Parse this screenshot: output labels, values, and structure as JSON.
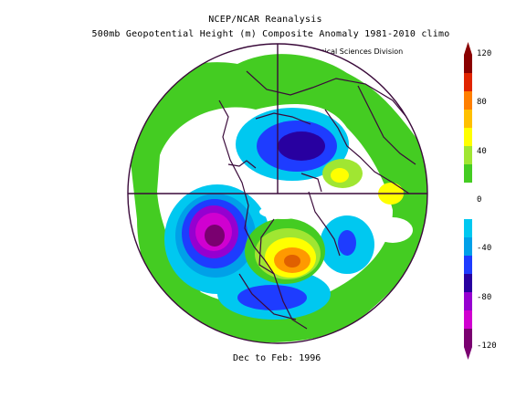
{
  "title_line1": "NCEP/NCAR Reanalysis",
  "title_line2": "500mb Geopotential Height (m) Composite Anomaly 1981-2010 climo",
  "credit": "NOAA/ESRL Physical Sciences Division",
  "footer": "Dec to Feb: 1996",
  "colorbar": {
    "labels": [
      "120",
      "80",
      "40",
      "0",
      "-40",
      "-80",
      "-120"
    ],
    "colors": [
      "#8a0000",
      "#e02400",
      "#ff7f00",
      "#ffc000",
      "#ffff00",
      "#a0e632",
      "#44cc22",
      "#ffffff",
      "#ffffff",
      "#00c8f0",
      "#00a0e8",
      "#1e3cff",
      "#2800a0",
      "#9600d0",
      "#d000d0",
      "#7a0070"
    ]
  },
  "map": {
    "projection": "north polar stereographic",
    "colors": {
      "ocean_white": "#ffffff",
      "green": "#44cc22",
      "lightgreen": "#a0e632",
      "yellow": "#ffff00",
      "orange": "#ff9900",
      "darkorange": "#e06000",
      "cyan": "#00c8f0",
      "lightblue": "#00a0e8",
      "blue": "#1e3cff",
      "navy": "#2800a0",
      "purple": "#9600d0",
      "magenta": "#d000d0",
      "darkmagenta": "#7a0070",
      "coast": "#3a0a3a"
    }
  }
}
